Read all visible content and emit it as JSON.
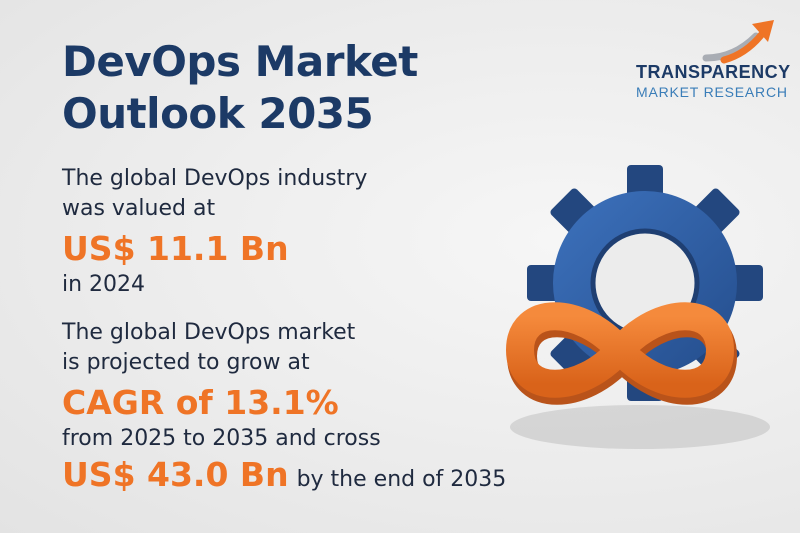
{
  "title": {
    "line1": "DevOps Market",
    "line2": "Outlook 2035"
  },
  "logo": {
    "line1": "TRANSPARENCY",
    "line2": "MARKET RESEARCH"
  },
  "stat1": {
    "line1": "The global DevOps industry",
    "line2": "was valued at",
    "value": "US$ 11.1 Bn",
    "line3": "in 2024"
  },
  "stat2": {
    "line1": "The global DevOps market",
    "line2": "is projected to grow at",
    "value": "CAGR of 13.1%",
    "line3": "from 2025 to 2035 and cross",
    "value2": "US$ 43.0 Bn",
    "line4": "by the end of 2035"
  },
  "colors": {
    "navy": "#1c3a66",
    "accent": "#ef7426",
    "gear": "#2f5ea5",
    "logo_light": "#3a7db8"
  },
  "illustration": {
    "icons": [
      "gear-icon",
      "infinity-loop-icon"
    ]
  }
}
